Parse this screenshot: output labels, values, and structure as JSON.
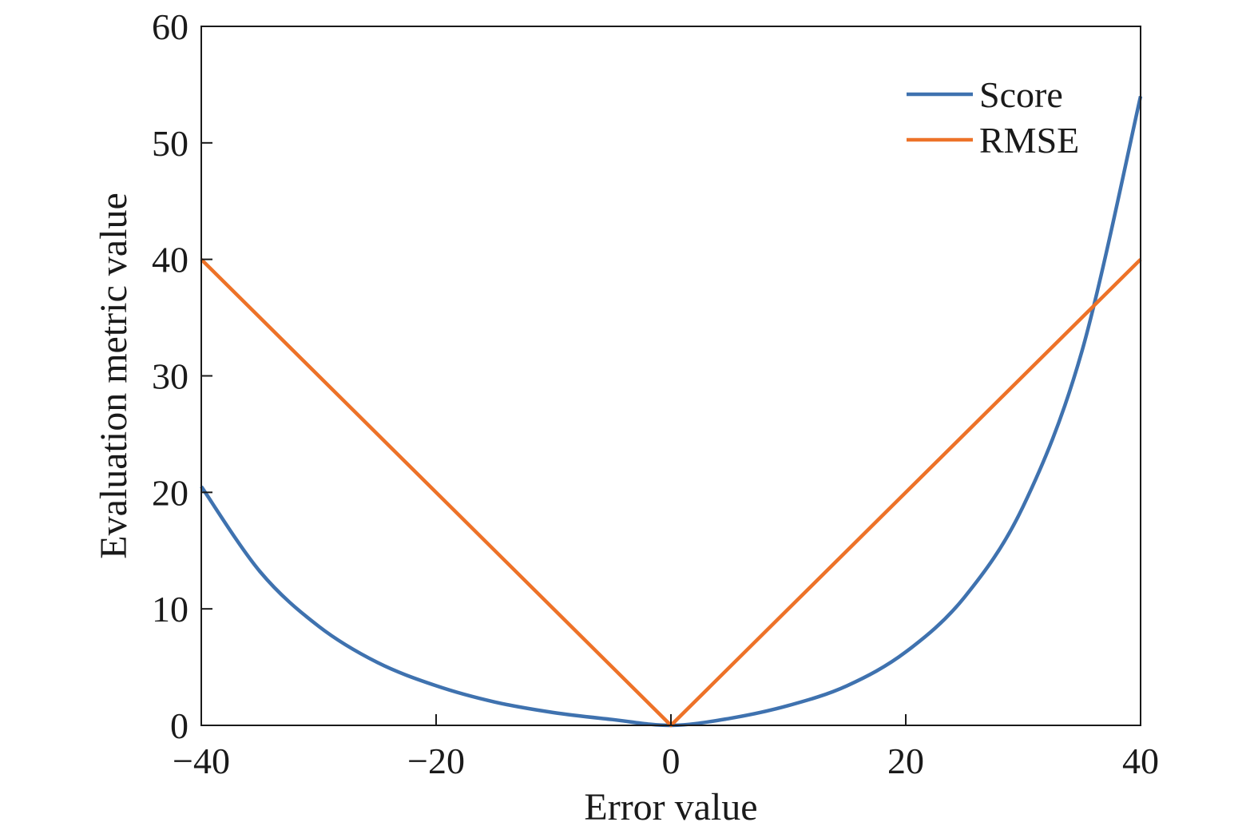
{
  "chart_data": {
    "type": "line",
    "title": "",
    "xlabel": "Error value",
    "ylabel": "Evaluation metric value",
    "xlim": [
      -40,
      40
    ],
    "ylim": [
      0,
      60
    ],
    "x_ticks": [
      -40,
      -20,
      0,
      20,
      40
    ],
    "x_tick_labels": [
      "−40",
      "−20",
      "0",
      "20",
      "40"
    ],
    "y_ticks": [
      0,
      10,
      20,
      30,
      40,
      50,
      60
    ],
    "y_tick_labels": [
      "0",
      "10",
      "20",
      "30",
      "40",
      "50",
      "60"
    ],
    "grid": false,
    "legend_position": "top-right",
    "series": [
      {
        "name": "Score",
        "color": "#3f72af",
        "x": [
          -40,
          -35,
          -30,
          -25,
          -20,
          -15,
          -10,
          -5,
          0,
          5,
          10,
          15,
          20,
          25,
          30,
          35,
          40
        ],
        "y": [
          20.5,
          13.2,
          8.5,
          5.4,
          3.4,
          2.0,
          1.1,
          0.5,
          0.0,
          0.6,
          1.7,
          3.4,
          6.3,
          11.0,
          18.8,
          32.1,
          54.0
        ]
      },
      {
        "name": "RMSE",
        "color": "#ed7228",
        "x": [
          -40,
          0,
          40
        ],
        "y": [
          40,
          0,
          40
        ]
      }
    ]
  }
}
